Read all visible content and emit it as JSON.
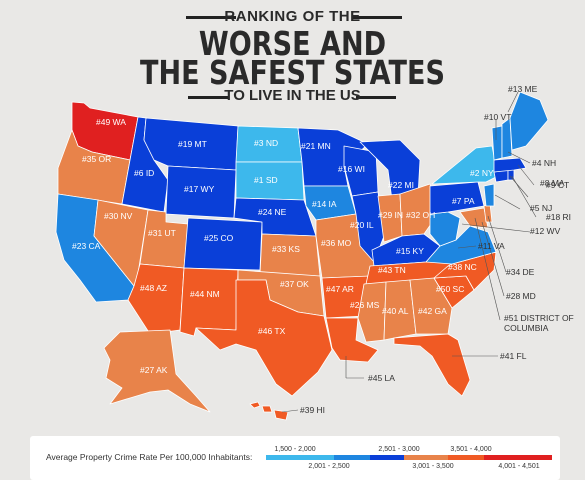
{
  "title": {
    "line1": "RANKING OF THE",
    "line2": "WORSE AND",
    "line3": "THE SAFEST STATES",
    "line4": "TO LIVE IN THE US"
  },
  "colors": {
    "c1": "#3db8ec",
    "c2": "#1e86e0",
    "c3": "#0a3fd8",
    "c4": "#e8834a",
    "c5": "#f05a24",
    "c6": "#e02020"
  },
  "legend": {
    "title": "Average Property Crime Rate Per 100,000 Inhabitants:",
    "ranges": [
      "1,500 - 2,000",
      "2,001 - 2,500",
      "2,501 - 3,000",
      "3,001 - 3,500",
      "3,501 - 4,000",
      "4,001 - 4,501"
    ]
  },
  "states": {
    "WA": "#49 WA",
    "OR": "#35 OR",
    "CA": "#23 CA",
    "ID": "#6 ID",
    "NV": "#30 NV",
    "MT": "#19 MT",
    "WY": "#17 WY",
    "UT": "#31 UT",
    "CO": "#25 CO",
    "AZ": "#48 AZ",
    "NM": "#44 NM",
    "ND": "#3 ND",
    "SD": "#1 SD",
    "NE": "#24 NE",
    "KS": "#33 KS",
    "OK": "#37 OK",
    "TX": "#46 TX",
    "MN": "#21 MN",
    "IA": "#14 IA",
    "MO": "#36 MO",
    "AR": "#47 AR",
    "LA": "#45 LA",
    "WI": "#16 WI",
    "IL": "#20 IL",
    "MI": "#22 MI",
    "IN": "#29 IN",
    "OH": "#32 OH",
    "KY": "#15 KY",
    "TN": "#43 TN",
    "MS": "#26 MS",
    "AL": "#40 AL",
    "GA": "#42 GA",
    "FL": "#41 FL",
    "SC": "#50 SC",
    "NC": "#38 NC",
    "VA": "#11 VA",
    "WV": "#12 WV",
    "PA": "#7 PA",
    "NY": "#2 NY",
    "ME": "#13 ME",
    "VT": "#10 VT",
    "NH": "#4 NH",
    "MA": "#8 MA",
    "CT": "#9 CT",
    "NJ": "#5 NJ",
    "RI": "#18 RI",
    "DE": "#34 DE",
    "MD": "#28 MD",
    "DC1": "#51 DISTRICT OF",
    "DC2": "COLUMBIA",
    "AK": "#27 AK",
    "HI": "#39 HI"
  }
}
